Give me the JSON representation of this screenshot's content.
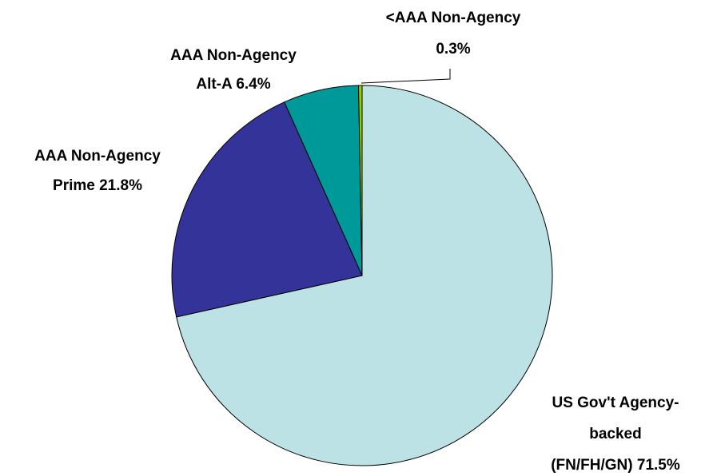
{
  "chart_data": {
    "type": "pie",
    "categories": [
      [
        "US Gov't Agency-",
        "backed",
        "(FN/FH/GN)"
      ],
      [
        "AAA Non-Agency",
        "Prime"
      ],
      [
        "AAA Non-Agency",
        "Alt-A"
      ],
      [
        "<AAA Non-Agency"
      ]
    ],
    "values": [
      71.5,
      21.8,
      6.4,
      0.3
    ],
    "value_labels": [
      "71.5%",
      "21.8%",
      "6.4%",
      "0.3%"
    ],
    "colors": [
      "#bce2e5",
      "#333399",
      "#009999",
      "#99cc00"
    ]
  }
}
